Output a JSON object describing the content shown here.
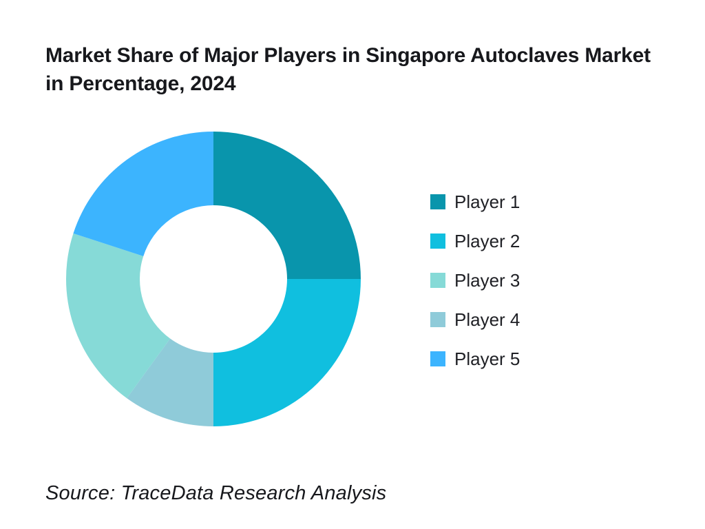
{
  "page": {
    "background_color": "#ffffff"
  },
  "header": {
    "title_line1": "Market Share of Major Players in Singapore Autoclaves Market",
    "title_line2": "in Percentage, 2024"
  },
  "chart_data": {
    "type": "pie",
    "subtype": "donut",
    "title": "Market Share of Major Players in Singapore Autoclaves Market in Percentage, 2024",
    "unit": "percent",
    "categories": [
      "Player 1",
      "Player 2",
      "Player 3",
      "Player 4",
      "Player 5"
    ],
    "values": [
      25,
      25,
      20,
      10,
      20
    ],
    "colors": [
      "#0995ac",
      "#10bfdf",
      "#86dad7",
      "#8fcbd9",
      "#3cb4fe"
    ],
    "visual_clockwise_from_top": [
      "Player 1",
      "Player 2",
      "Player 4",
      "Player 3",
      "Player 5"
    ],
    "start_angle_deg": 0,
    "inner_radius_ratio": 0.5,
    "legend_position": "right",
    "data_labels_shown": false
  },
  "legend": {
    "items": [
      {
        "label": "Player 1",
        "color": "#0995ac"
      },
      {
        "label": "Player 2",
        "color": "#10bfdf"
      },
      {
        "label": "Player 3",
        "color": "#86dad7"
      },
      {
        "label": "Player 4",
        "color": "#8fcbd9"
      },
      {
        "label": "Player 5",
        "color": "#3cb4fe"
      }
    ]
  },
  "footer": {
    "source": "Source: TraceData Research Analysis"
  }
}
